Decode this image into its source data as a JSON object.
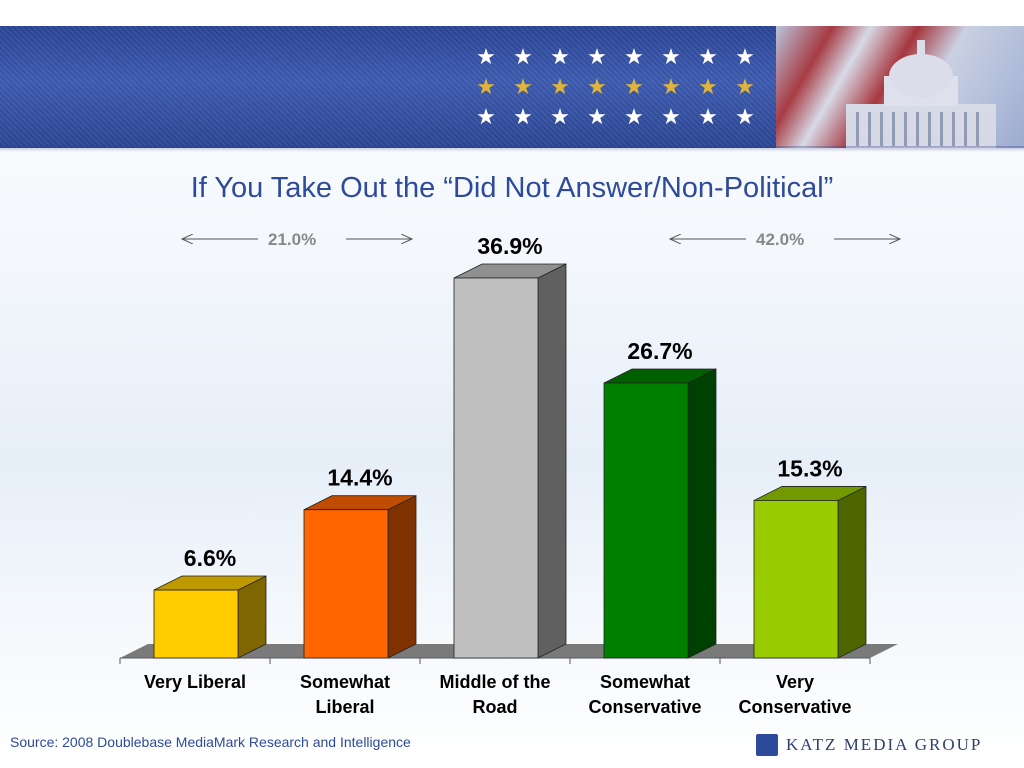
{
  "title": "If You Take Out the “Did Not Answer/Non-Political”",
  "brackets": [
    {
      "label": "21.0%"
    },
    {
      "label": "42.0%"
    }
  ],
  "source": "Source: 2008 Doublebase MediaMark Research and Intelligence",
  "logo": "KATZ MEDIA GROUP",
  "chart_data": {
    "type": "bar",
    "categories": [
      "Very Liberal",
      "Somewhat Liberal",
      "Middle of the Road",
      "Somewhat Conservative",
      "Very Conservative"
    ],
    "category_lines": [
      [
        "Very Liberal"
      ],
      [
        "Somewhat",
        "Liberal"
      ],
      [
        "Middle of the",
        "Road"
      ],
      [
        "Somewhat",
        "Conservative"
      ],
      [
        "Very",
        "Conservative"
      ]
    ],
    "values": [
      6.6,
      14.4,
      36.9,
      26.7,
      15.3
    ],
    "data_labels": [
      "6.6%",
      "14.4%",
      "36.9%",
      "26.7%",
      "15.3%"
    ],
    "colors": {
      "front": [
        "#ffcc00",
        "#ff6600",
        "#c0c0c0",
        "#008000",
        "#99cc00"
      ],
      "side": [
        "#806600",
        "#803300",
        "#606060",
        "#004000",
        "#4d6600"
      ],
      "top": [
        "#bf9900",
        "#bf4c00",
        "#909090",
        "#006000",
        "#739900"
      ]
    },
    "ylim": [
      0,
      36.9
    ],
    "grid": false,
    "three_d": true
  }
}
